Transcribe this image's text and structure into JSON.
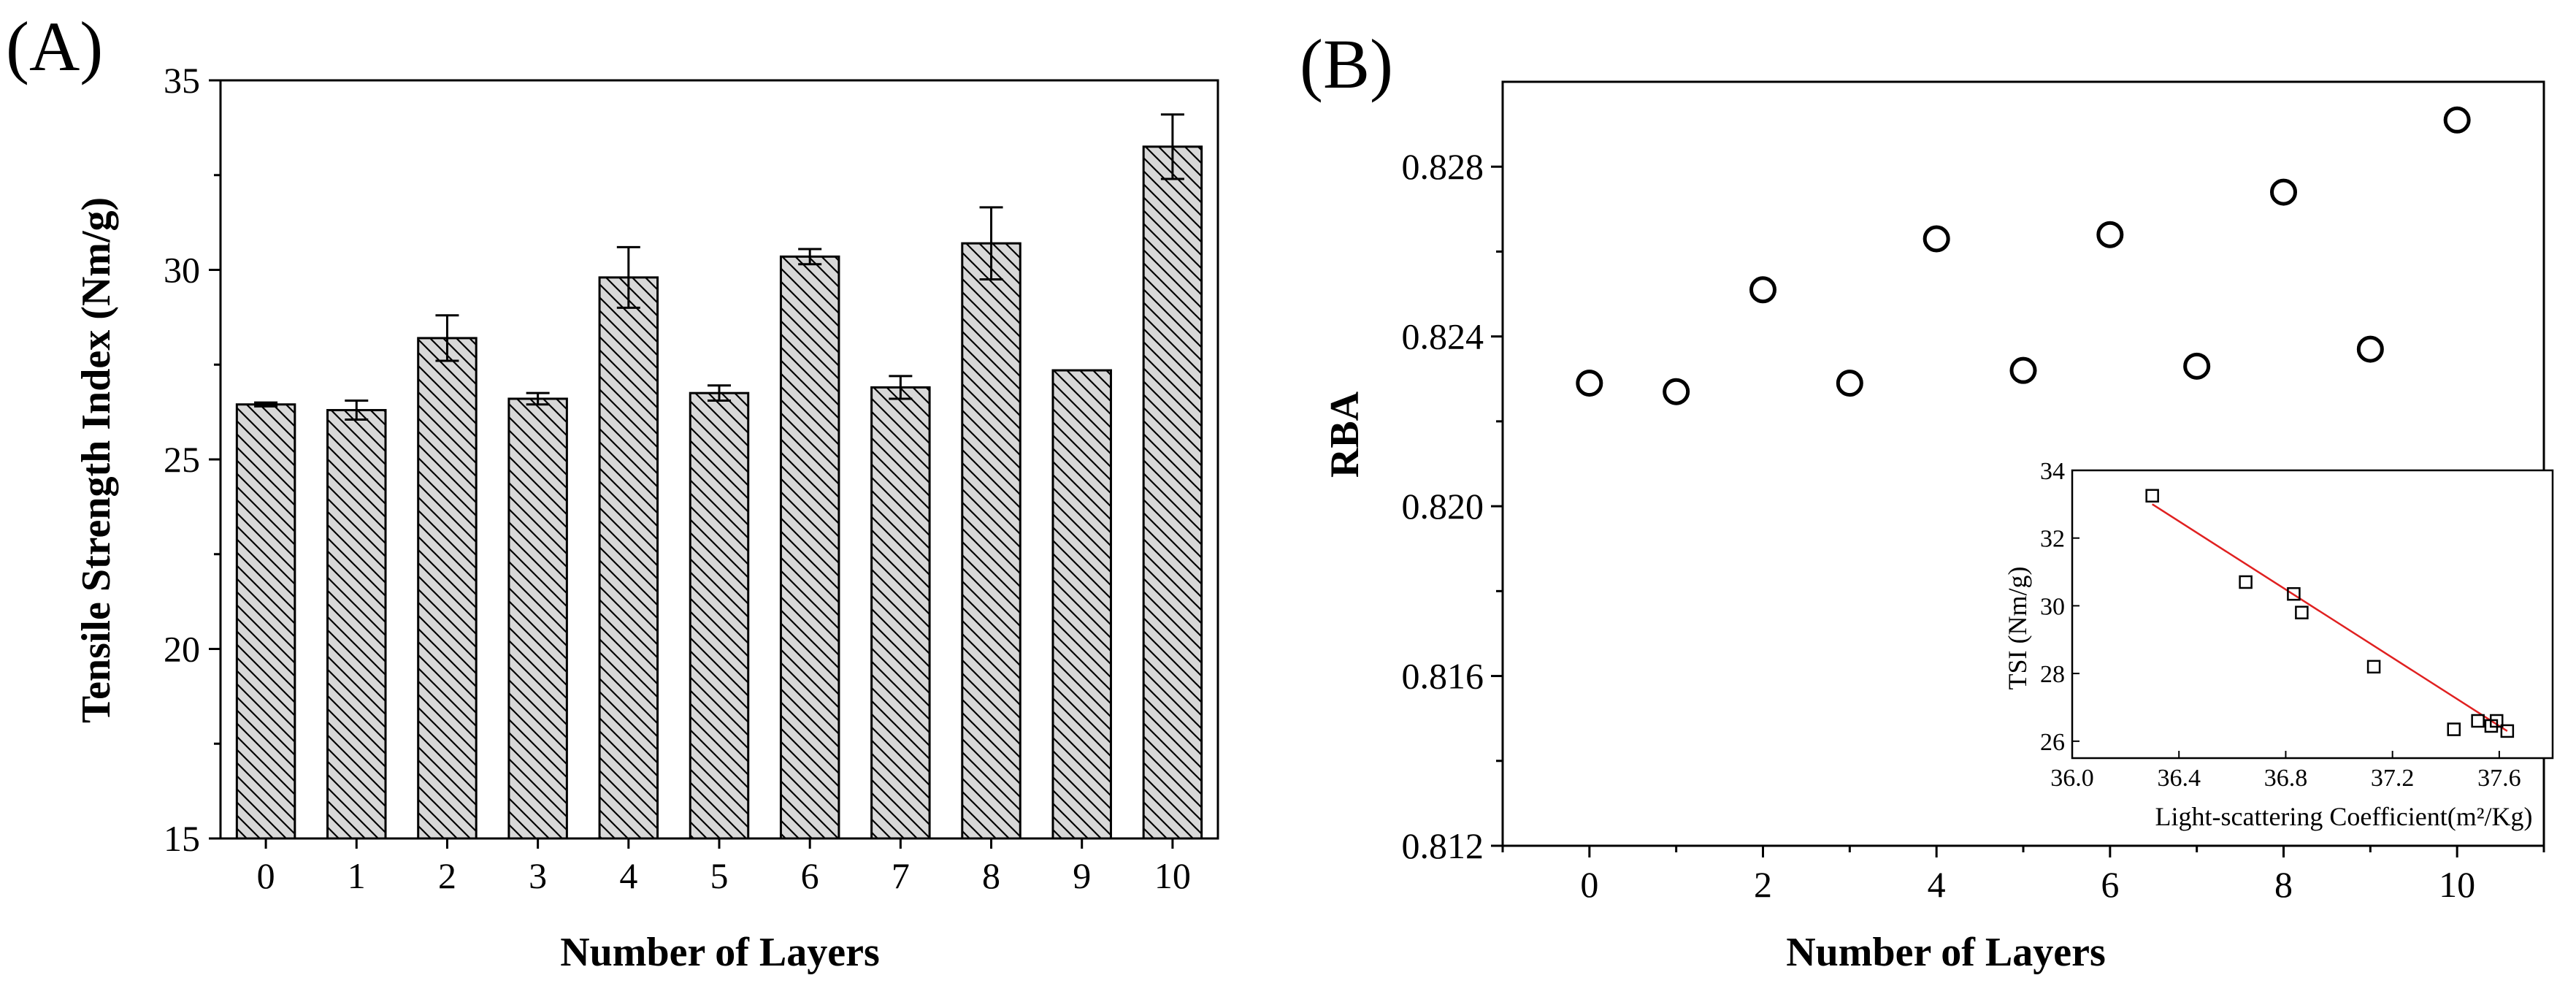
{
  "chart_data": [
    {
      "panel_label": "(A)",
      "type": "bar",
      "categories": [
        "0",
        "1",
        "2",
        "3",
        "4",
        "5",
        "6",
        "7",
        "8",
        "9",
        "10"
      ],
      "values": [
        26.45,
        26.3,
        28.2,
        26.6,
        29.8,
        26.75,
        30.35,
        26.9,
        30.7,
        27.35,
        33.25
      ],
      "errors": [
        0.05,
        0.25,
        0.6,
        0.15,
        0.8,
        0.2,
        0.2,
        0.3,
        0.95,
        0.0,
        0.85
      ],
      "xlabel": "Number of Layers",
      "ylabel": "Tensile Strength Index (Nm/g)",
      "ylim": [
        15,
        35
      ],
      "yticks": [
        "15",
        "20",
        "25",
        "30",
        "35"
      ],
      "bar_fill": "#d8d8d8",
      "hatch": "diagonal"
    },
    {
      "panel_label": "(B)",
      "type": "scatter",
      "x": [
        0,
        1,
        2,
        3,
        4,
        5,
        6,
        7,
        8,
        9,
        10
      ],
      "y": [
        0.8229,
        0.8227,
        0.8251,
        0.8229,
        0.8263,
        0.8232,
        0.8264,
        0.8233,
        0.8274,
        0.8237,
        0.8291
      ],
      "marker": "open-circle",
      "xlabel": "Number of Layers",
      "ylabel": "RBA",
      "xlim": [
        -1,
        11
      ],
      "ylim": [
        0.812,
        0.83
      ],
      "xticks": [
        "0",
        "2",
        "4",
        "6",
        "8",
        "10"
      ],
      "yticks": [
        "0.812",
        "0.816",
        "0.820",
        "0.824",
        "0.828"
      ],
      "inset": {
        "type": "scatter",
        "x": [
          36.3,
          36.65,
          36.83,
          36.86,
          37.13,
          37.43,
          37.52,
          37.57,
          37.59,
          37.63
        ],
        "y": [
          33.25,
          30.7,
          30.35,
          29.8,
          28.2,
          26.35,
          26.6,
          26.45,
          26.6,
          26.3
        ],
        "marker": "open-square",
        "fit_line": {
          "x": [
            36.3,
            37.63
          ],
          "y": [
            33.0,
            26.3
          ],
          "color": "#e02020"
        },
        "xlabel": "Light-scattering Coefficient(m²/Kg)",
        "ylabel": "TSI (Nm/g)",
        "xlim": [
          36.0,
          37.8
        ],
        "ylim": [
          25.5,
          34
        ],
        "xticks": [
          "36.0",
          "36.4",
          "36.8",
          "37.2",
          "37.6"
        ],
        "yticks": [
          "26",
          "28",
          "30",
          "32",
          "34"
        ]
      }
    }
  ]
}
